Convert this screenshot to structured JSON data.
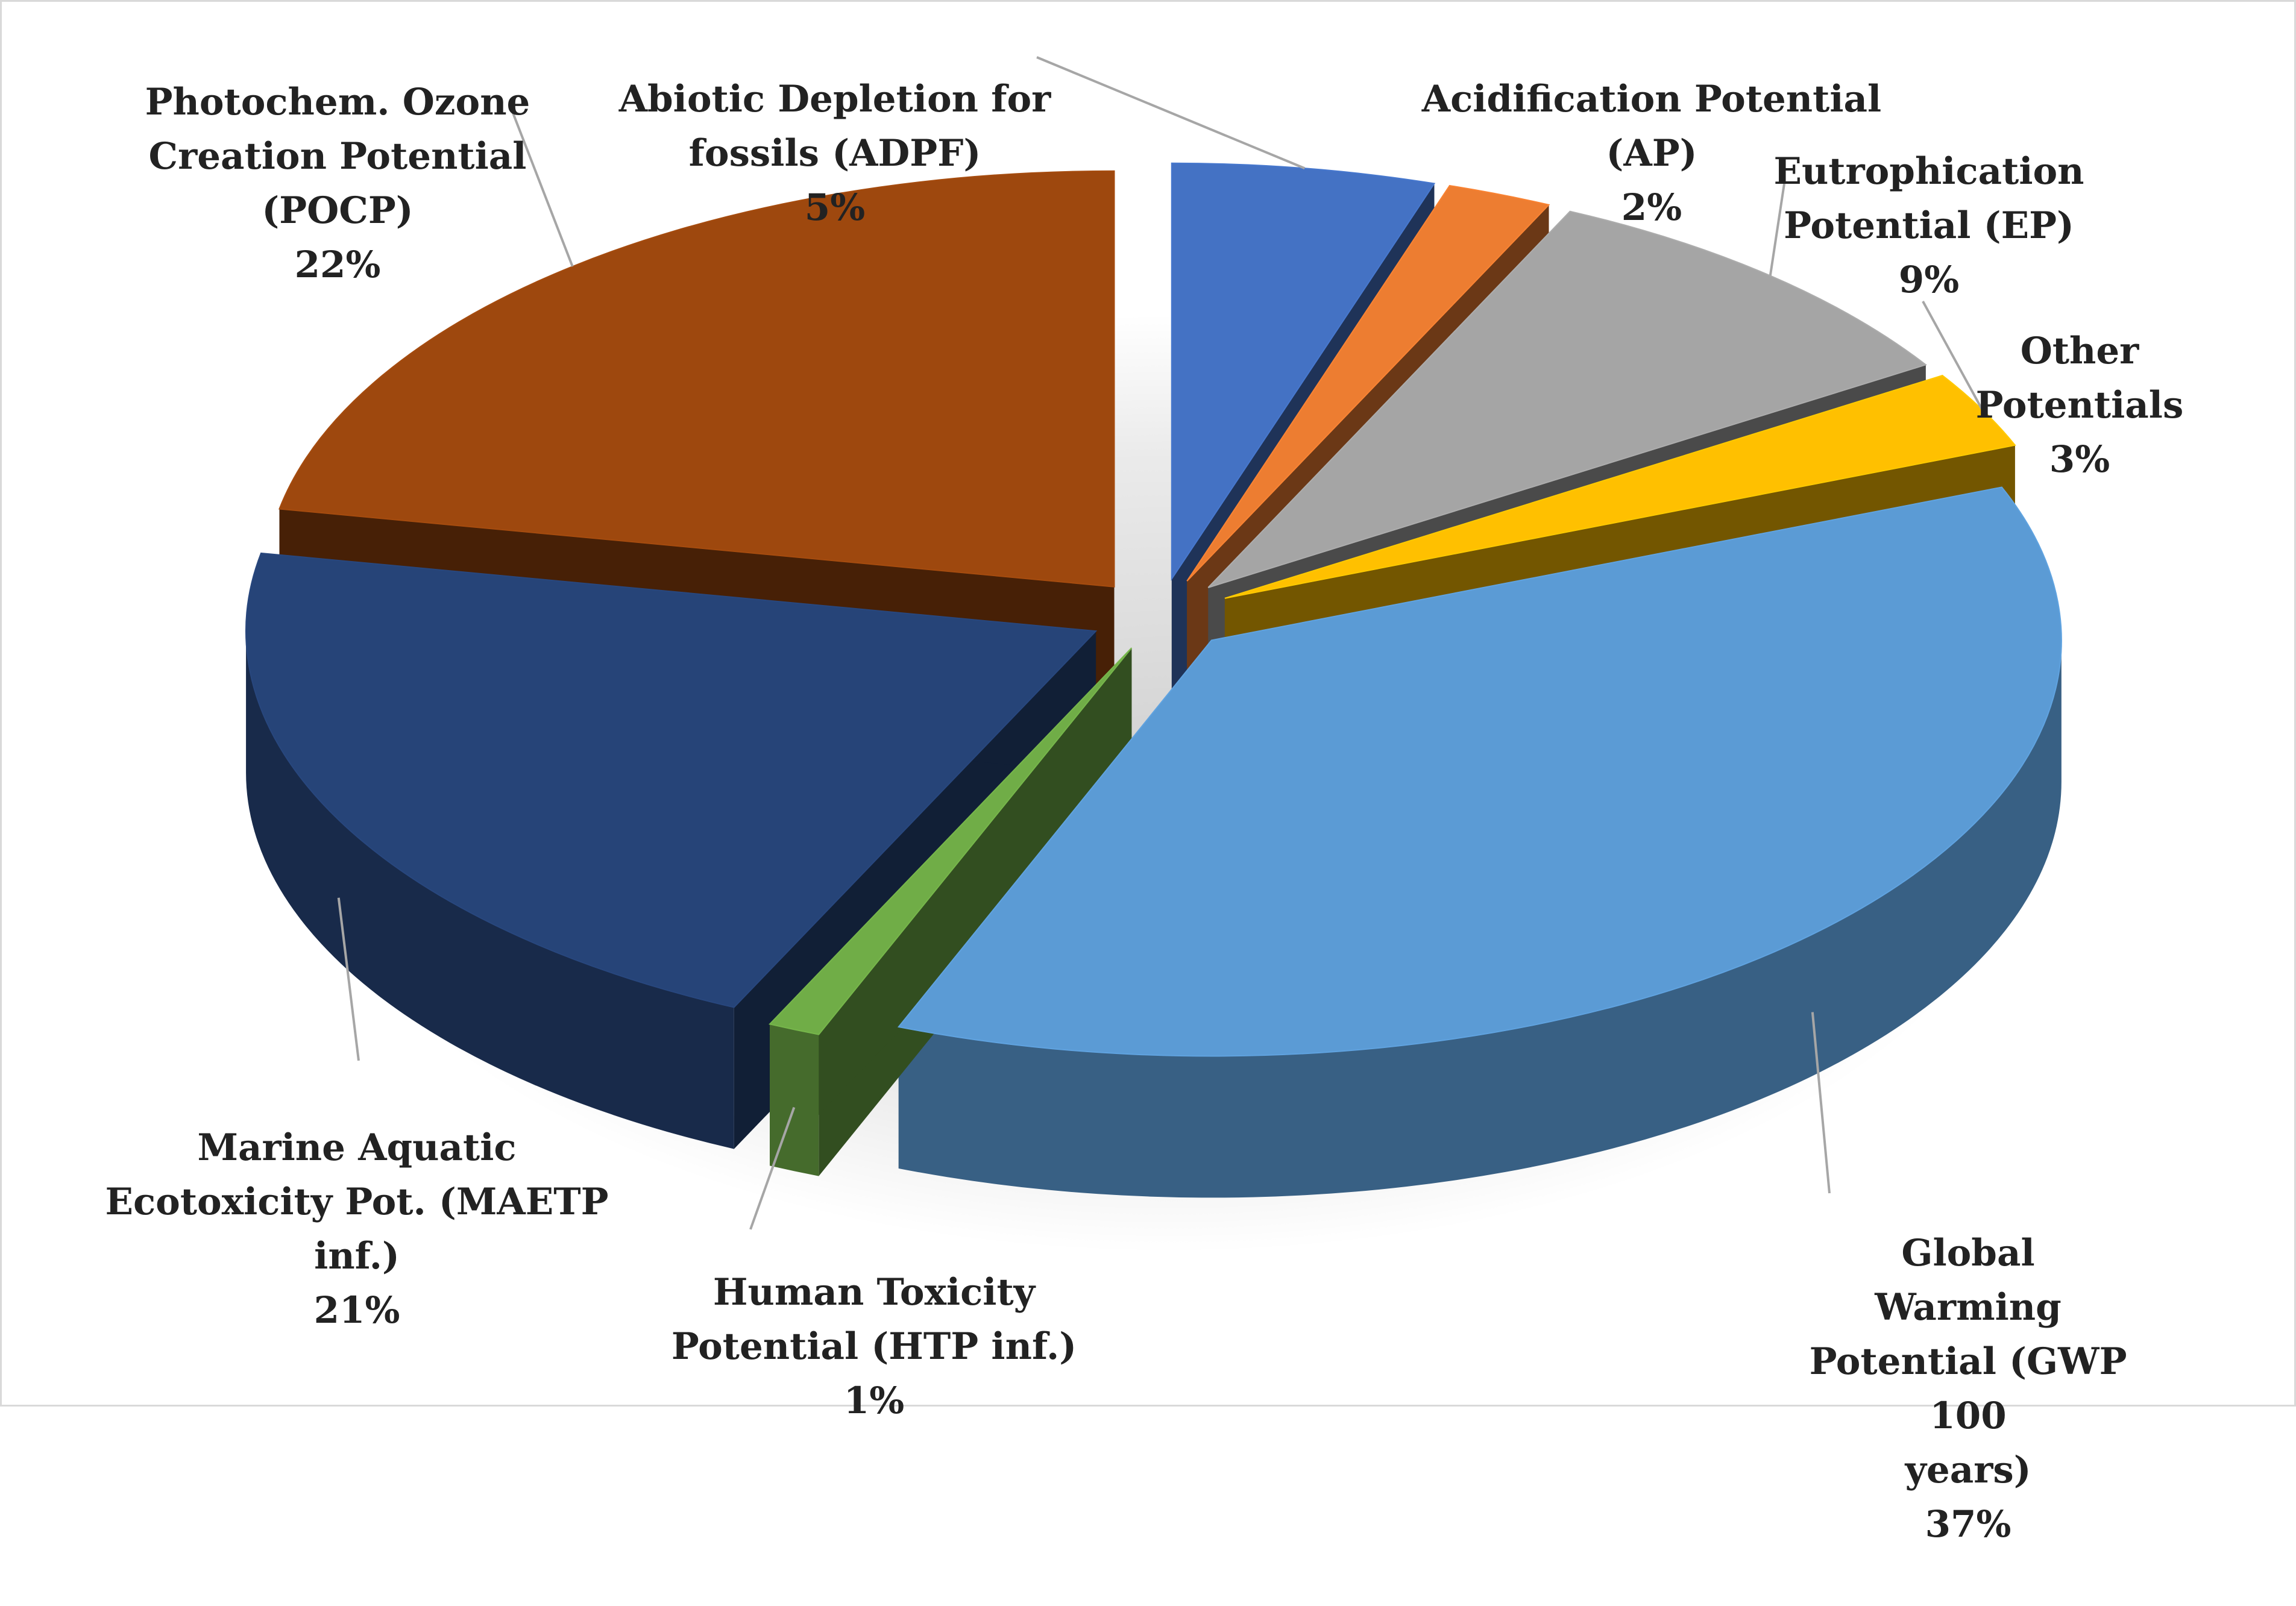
{
  "chart_data": {
    "type": "pie",
    "title": "",
    "style": "3d-exploded",
    "legend": "none",
    "slices": [
      {
        "name": "Abiotic Depletion for\nfossils (ADPF)",
        "value": 5,
        "pct_label": "5%",
        "color": "#4472C4"
      },
      {
        "name": "Acidification Potential\n(AP)",
        "value": 2,
        "pct_label": "2%",
        "color": "#ED7D31"
      },
      {
        "name": "Eutrophication\nPotential (EP)",
        "value": 9,
        "pct_label": "9%",
        "color": "#A5A5A5"
      },
      {
        "name": "Other Potentials",
        "value": 3,
        "pct_label": "3%",
        "color": "#FFC000"
      },
      {
        "name": "Global Warming\nPotential (GWP 100\nyears)",
        "value": 37,
        "pct_label": "37%",
        "color": "#5B9BD5"
      },
      {
        "name": "Human Toxicity\nPotential (HTP inf.)",
        "value": 1,
        "pct_label": "1%",
        "color": "#70AD47"
      },
      {
        "name": "Marine Aquatic\nEcotoxicity Pot. (MAETP\ninf.)",
        "value": 21,
        "pct_label": "21%",
        "color": "#264478"
      },
      {
        "name": "Photochem. Ozone\nCreation Potential\n(POCP)",
        "value": 22,
        "pct_label": "22%",
        "color": "#9E480E"
      }
    ]
  }
}
